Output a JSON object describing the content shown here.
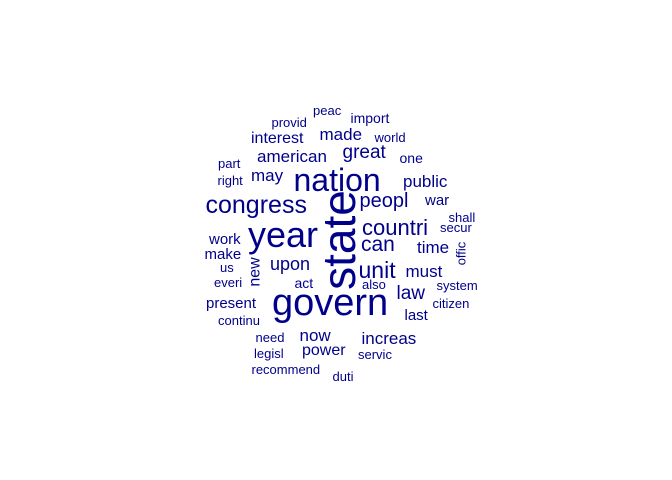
{
  "colors": {
    "word": "#00008B",
    "background": "#ffffff"
  },
  "words": [
    {
      "text": "state",
      "weight": 10,
      "vertical": true
    },
    {
      "text": "govern",
      "weight": 9
    },
    {
      "text": "year",
      "weight": 8
    },
    {
      "text": "nation",
      "weight": 8
    },
    {
      "text": "congress",
      "weight": 6
    },
    {
      "text": "unit",
      "weight": 5
    },
    {
      "text": "countri",
      "weight": 5
    },
    {
      "text": "peopl",
      "weight": 5
    },
    {
      "text": "can",
      "weight": 5
    },
    {
      "text": "upon",
      "weight": 4
    },
    {
      "text": "great",
      "weight": 4
    },
    {
      "text": "american",
      "weight": 4
    },
    {
      "text": "law",
      "weight": 4
    },
    {
      "text": "must",
      "weight": 4
    },
    {
      "text": "time",
      "weight": 4
    },
    {
      "text": "public",
      "weight": 4
    },
    {
      "text": "made",
      "weight": 4
    },
    {
      "text": "may",
      "weight": 4
    },
    {
      "text": "now",
      "weight": 4
    },
    {
      "text": "interest",
      "weight": 4
    },
    {
      "text": "power",
      "weight": 4
    },
    {
      "text": "increas",
      "weight": 4
    },
    {
      "text": "new",
      "weight": 4,
      "vertical": true
    },
    {
      "text": "make",
      "weight": 3
    },
    {
      "text": "work",
      "weight": 3
    },
    {
      "text": "present",
      "weight": 3
    },
    {
      "text": "war",
      "weight": 3
    },
    {
      "text": "one",
      "weight": 3
    },
    {
      "text": "last",
      "weight": 3
    },
    {
      "text": "import",
      "weight": 3
    },
    {
      "text": "act",
      "weight": 3
    },
    {
      "text": "need",
      "weight": 3
    },
    {
      "text": "right",
      "weight": 2
    },
    {
      "text": "part",
      "weight": 2
    },
    {
      "text": "provid",
      "weight": 2
    },
    {
      "text": "peac",
      "weight": 2
    },
    {
      "text": "world",
      "weight": 2
    },
    {
      "text": "us",
      "weight": 2
    },
    {
      "text": "everi",
      "weight": 2
    },
    {
      "text": "also",
      "weight": 2
    },
    {
      "text": "system",
      "weight": 2
    },
    {
      "text": "citizen",
      "weight": 2
    },
    {
      "text": "shall",
      "weight": 2
    },
    {
      "text": "secur",
      "weight": 2
    },
    {
      "text": "offic",
      "weight": 2,
      "vertical": true
    },
    {
      "text": "continu",
      "weight": 2
    },
    {
      "text": "legisl",
      "weight": 2
    },
    {
      "text": "servic",
      "weight": 2
    },
    {
      "text": "recommend",
      "weight": 2
    },
    {
      "text": "duti",
      "weight": 2
    }
  ]
}
